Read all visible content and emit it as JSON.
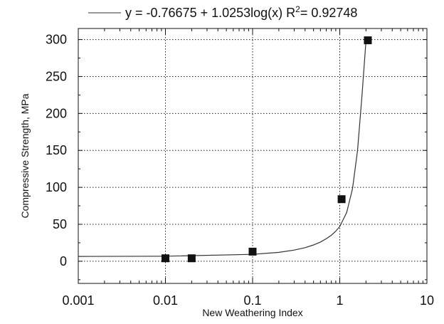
{
  "chart_data": {
    "type": "scatter",
    "xlabel": "New Weathering Index",
    "ylabel": "Compressive Strength, MPa",
    "x_scale": "log",
    "xlim": [
      0.001,
      10
    ],
    "ylim": [
      -30,
      315
    ],
    "x_ticks": [
      0.001,
      0.01,
      0.1,
      1,
      10
    ],
    "x_tick_labels": [
      "0.001",
      "0.01",
      "0.1",
      "1",
      "10"
    ],
    "y_ticks": [
      0,
      50,
      100,
      150,
      200,
      250,
      300
    ],
    "y_tick_labels": [
      "0",
      "50",
      "100",
      "150",
      "200",
      "250",
      "300"
    ],
    "grid": true,
    "legend_placement": "top",
    "series": [
      {
        "type": "scatter",
        "marker": "square",
        "x": [
          0.01,
          0.02,
          0.1,
          1.05,
          2.1
        ],
        "y": [
          4,
          4,
          13,
          84,
          299
        ]
      },
      {
        "type": "line",
        "name": "y = -0.76675 + 1.0253log(x) R2= 0.92748",
        "x": [
          0.001,
          0.01,
          0.1,
          0.2,
          0.3,
          0.4,
          0.5,
          0.6,
          0.7,
          0.8,
          0.9,
          1.0,
          1.2,
          1.4,
          1.6,
          1.8,
          2.0
        ],
        "y": [
          6.5,
          6.8,
          9.3,
          12.0,
          15.1,
          18.4,
          22.0,
          26.0,
          30.4,
          35.1,
          40.7,
          47.0,
          66,
          98,
          150,
          225,
          299
        ]
      }
    ],
    "legend": {
      "main": "y = -0.76675 + 1.0253log(x) R",
      "sup": "2",
      "tail": "= 0.92748"
    },
    "colors": {
      "marker": "#111111",
      "line": "#333333",
      "grid": "#222222"
    }
  }
}
